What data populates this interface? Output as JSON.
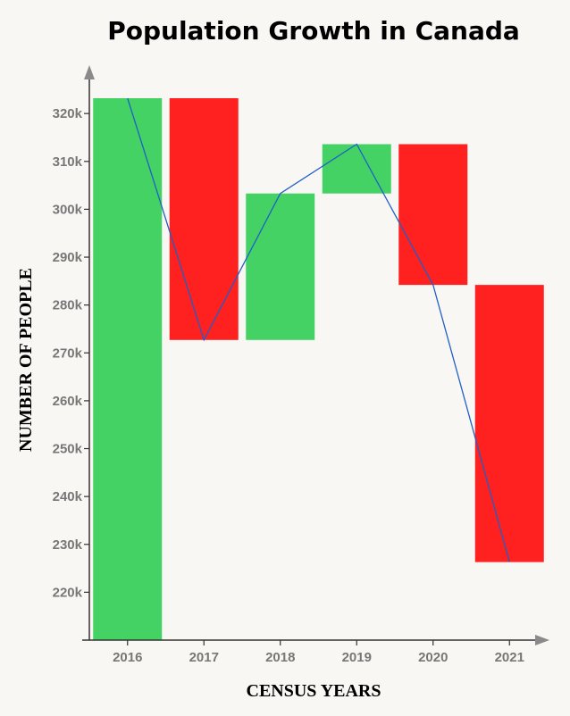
{
  "chart_data": {
    "type": "waterfall",
    "title": "Population Growth in Canada",
    "xlabel": "CENSUS YEARS",
    "ylabel": "NUMBER OF PEOPLE",
    "categories": [
      "2016",
      "2017",
      "2018",
      "2019",
      "2020",
      "2021"
    ],
    "bars": [
      {
        "start": 210000,
        "end": 323200,
        "direction": "increase"
      },
      {
        "start": 323200,
        "end": 272700,
        "direction": "decrease"
      },
      {
        "start": 272700,
        "end": 303300,
        "direction": "increase"
      },
      {
        "start": 303300,
        "end": 313600,
        "direction": "increase"
      },
      {
        "start": 313600,
        "end": 284200,
        "direction": "decrease"
      },
      {
        "start": 284200,
        "end": 226300,
        "direction": "decrease"
      }
    ],
    "line": {
      "x": [
        "2016",
        "2017",
        "2018",
        "2019",
        "2020",
        "2021"
      ],
      "y": [
        323200,
        272700,
        303300,
        313600,
        284200,
        226300
      ]
    },
    "yticks": [
      220000,
      230000,
      240000,
      250000,
      260000,
      270000,
      280000,
      290000,
      300000,
      310000,
      320000
    ],
    "ytick_labels": [
      "220k",
      "230k",
      "240k",
      "250k",
      "260k",
      "270k",
      "280k",
      "290k",
      "300k",
      "310k",
      "320k"
    ],
    "ylim": [
      210000,
      326000
    ],
    "colors": {
      "increase": "#44d265",
      "decrease": "#ff2020",
      "line": "#1f5fc8",
      "axis": "#333333",
      "arrow": "#8a8a8a"
    }
  }
}
